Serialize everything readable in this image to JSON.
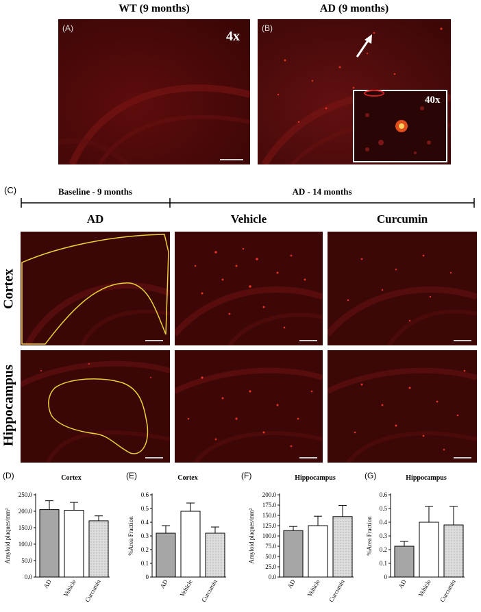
{
  "top": {
    "wt_title": "WT (9 months)",
    "ad_title": "AD (9 months)",
    "panel_a": "(A)",
    "panel_b": "(B)",
    "mag_4x": "4x",
    "mag_40x": "40x"
  },
  "section_c": {
    "panel_c": "(C)",
    "baseline": "Baseline - 9 months",
    "ad14": "AD - 14 months",
    "col_ad": "AD",
    "col_vehicle": "Vehicle",
    "col_curcumin": "Curcumin",
    "row_cortex": "Cortex",
    "row_hippocampus": "Hippocampus"
  },
  "colors": {
    "tissue_dark": "#3a0606",
    "tissue_mid": "#6a1010",
    "plaque": "#ff3a2a",
    "outline": "#e8d23a",
    "bar_ad": "#a6a6a6",
    "bar_vehicle": "#ffffff",
    "bar_curcumin": "#dcdcdc"
  },
  "chart_data": [
    {
      "panel": "(D)",
      "type": "bar",
      "title": "Cortex",
      "ylabel": "Amyloid plaques/mm²",
      "categories": [
        "AD",
        "Vehicle",
        "Curcumin"
      ],
      "values": [
        205,
        203,
        171
      ],
      "errors": [
        27,
        24,
        15
      ],
      "ylim": [
        0,
        250
      ],
      "yticks": [
        "0.0",
        "50.0",
        "100.0",
        "150.0",
        "200.0",
        "250.0"
      ]
    },
    {
      "panel": "(E)",
      "type": "bar",
      "title": "Cortex",
      "ylabel": "%Area Fraction",
      "categories": [
        "AD",
        "Vehicle",
        "Curcumin"
      ],
      "values": [
        0.32,
        0.48,
        0.32
      ],
      "errors": [
        0.055,
        0.06,
        0.045
      ],
      "ylim": [
        0,
        0.6
      ],
      "yticks": [
        "0",
        "0.1",
        "0.2",
        "0.3",
        "0.4",
        "0.5",
        "0.6"
      ]
    },
    {
      "panel": "(F)",
      "type": "bar",
      "title": "Hippocampus",
      "ylabel": "Amyloid plaques/mm²",
      "categories": [
        "AD",
        "Vehicle",
        "Curcumin"
      ],
      "values": [
        113,
        125,
        147
      ],
      "errors": [
        10,
        23,
        27
      ],
      "ylim": [
        0,
        200
      ],
      "yticks": [
        "0.0",
        "25.0",
        "50.0",
        "75.0",
        "100.0",
        "125.0",
        "150.0",
        "175.0",
        "200.0"
      ]
    },
    {
      "panel": "(G)",
      "type": "bar",
      "title": "Hippocampus",
      "ylabel": "%Area Fraction",
      "categories": [
        "AD",
        "Vehicle",
        "Curcumin"
      ],
      "values": [
        0.225,
        0.4,
        0.38
      ],
      "errors": [
        0.035,
        0.115,
        0.135
      ],
      "ylim": [
        0,
        0.6
      ],
      "yticks": [
        "0",
        "0.1",
        "0.2",
        "0.3",
        "0.4",
        "0.5",
        "0.6"
      ]
    }
  ]
}
